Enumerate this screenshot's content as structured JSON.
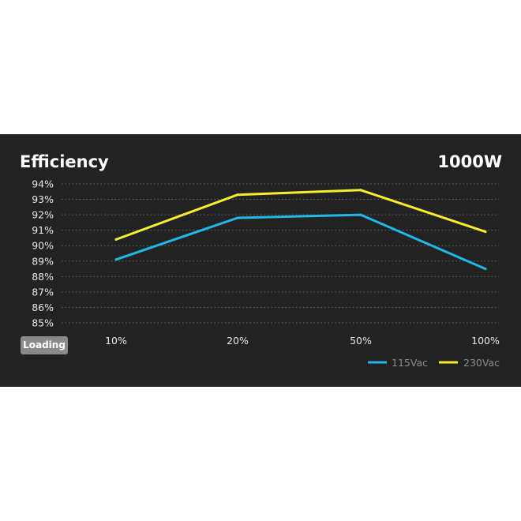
{
  "badge": {
    "loading": "Loading"
  },
  "chart_data": {
    "type": "line",
    "title": "Efficiency",
    "subtitle": "1000W",
    "categories": [
      "10%",
      "20%",
      "50%",
      "100%"
    ],
    "yticks": [
      "85%",
      "86%",
      "87%",
      "88%",
      "89%",
      "90%",
      "91%",
      "92%",
      "93%",
      "94%"
    ],
    "ylim": [
      85,
      94
    ],
    "grid": true,
    "legend_position": "bottom-right",
    "series": [
      {
        "name": "115Vac",
        "color": "#1fb8e8",
        "values": [
          89.1,
          91.8,
          92.0,
          88.5
        ]
      },
      {
        "name": "230Vac",
        "color": "#f5ef2a",
        "values": [
          90.4,
          93.3,
          93.6,
          90.9
        ]
      }
    ]
  }
}
